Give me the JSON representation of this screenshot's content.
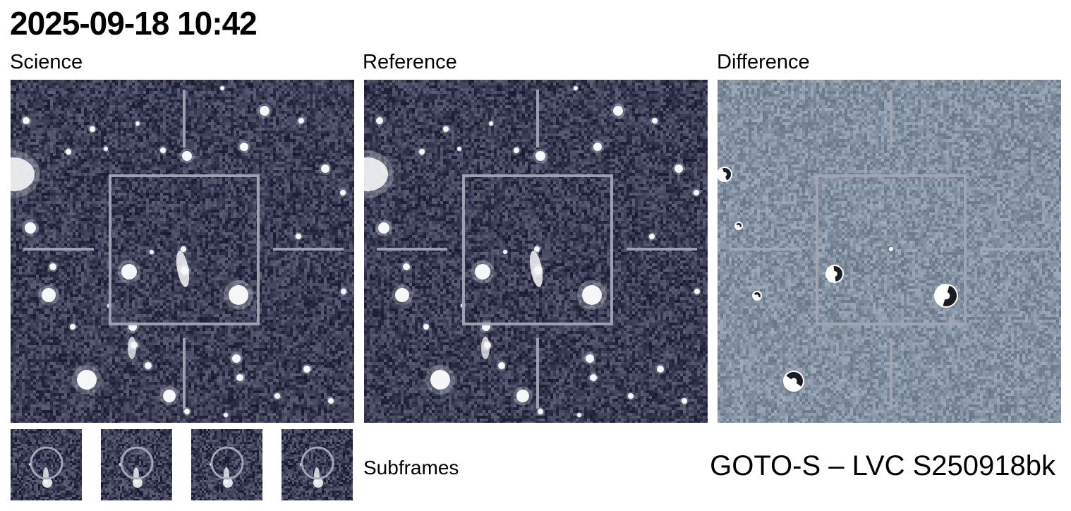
{
  "title": "2025-09-18 10:42",
  "panels": {
    "science": {
      "label": "Science"
    },
    "reference": {
      "label": "Reference"
    },
    "difference": {
      "label": "Difference"
    }
  },
  "subframes": {
    "label": "Subframes",
    "count": 4
  },
  "footer": {
    "label": "GOTO-S – LVC S250918bk"
  },
  "colors": {
    "sky_background": "#3b3e55",
    "difference_background": "#8391a2",
    "star": "#f4f6f8",
    "overlay": "#a3a6b3"
  }
}
